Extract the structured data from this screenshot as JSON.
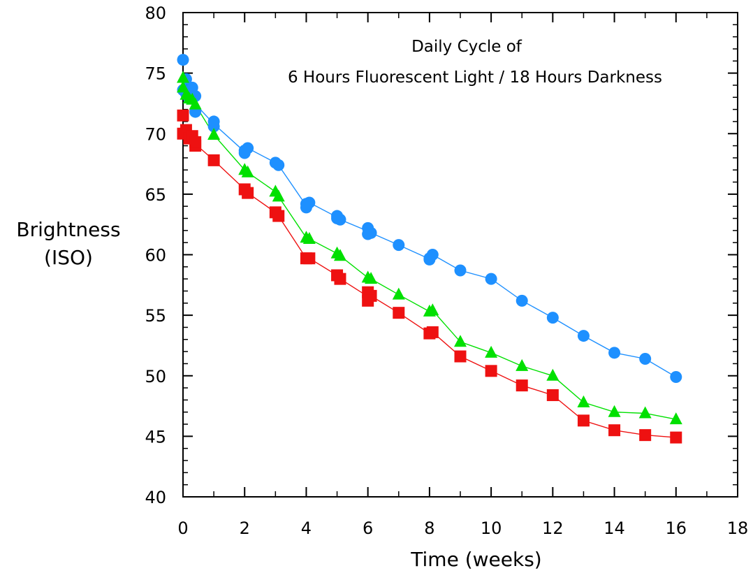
{
  "chart_data": {
    "type": "line",
    "title": "",
    "annotation": {
      "line1": "Daily Cycle of",
      "line2": "6 Hours Fluorescent Light / 18 Hours Darkness"
    },
    "xlabel": "Time (weeks)",
    "ylabel": {
      "line1": "Brightness",
      "line2": "(ISO)"
    },
    "xlim": [
      0,
      18
    ],
    "ylim": [
      40,
      80
    ],
    "xticks": [
      "0",
      "2",
      "4",
      "6",
      "8",
      "10",
      "12",
      "14",
      "16",
      "18"
    ],
    "yticks": [
      "40",
      "45",
      "50",
      "55",
      "60",
      "65",
      "70",
      "75",
      "80"
    ],
    "grid": false,
    "legend": "none",
    "series": [
      {
        "color": "#1e90ff",
        "marker": "circle",
        "x": [
          0,
          0,
          0.1,
          0.1,
          0.2,
          0.3,
          0.4,
          0.4,
          1,
          1,
          2,
          2,
          2.1,
          3,
          3.1,
          4,
          4.1,
          4,
          5,
          5.1,
          5,
          6,
          6.1,
          6,
          7,
          8,
          8.1,
          8,
          9,
          10,
          11,
          12,
          13,
          14,
          15,
          16
        ],
        "y": [
          76.1,
          73.6,
          74.5,
          73.3,
          72.9,
          73.8,
          73.1,
          71.8,
          71.0,
          70.6,
          68.6,
          68.4,
          68.8,
          67.6,
          67.4,
          64.2,
          64.3,
          63.9,
          63.2,
          62.9,
          63.0,
          62.2,
          61.8,
          61.7,
          60.8,
          59.7,
          60.0,
          59.6,
          58.7,
          58.0,
          56.2,
          54.8,
          53.3,
          51.9,
          51.4,
          49.9
        ]
      },
      {
        "color": "#00e000",
        "marker": "triangle",
        "x": [
          0,
          0,
          0.1,
          0.2,
          0.3,
          0.4,
          1,
          2,
          2.1,
          3,
          3.1,
          4,
          4.1,
          5,
          5.1,
          6,
          6.1,
          7,
          8,
          8.1,
          9,
          10,
          11,
          12,
          13,
          14,
          15,
          16
        ],
        "y": [
          74.6,
          73.8,
          73.2,
          72.9,
          72.8,
          72.4,
          69.9,
          67.0,
          66.8,
          65.2,
          64.8,
          61.4,
          61.3,
          60.1,
          59.9,
          58.1,
          58.0,
          56.7,
          55.3,
          55.4,
          52.8,
          51.9,
          50.8,
          50.0,
          47.8,
          47.0,
          46.9,
          46.4
        ]
      },
      {
        "color": "#ee1111",
        "marker": "square",
        "x": [
          0,
          0,
          0.1,
          0.2,
          0.3,
          0.4,
          0.4,
          1,
          2,
          2.1,
          3,
          3.1,
          4,
          4.1,
          5,
          5.1,
          6,
          6.1,
          6,
          7,
          8,
          8.1,
          9,
          10,
          11,
          12,
          13,
          14,
          15,
          16
        ],
        "y": [
          71.5,
          70.0,
          70.3,
          69.6,
          69.8,
          69.0,
          69.3,
          67.8,
          65.4,
          65.1,
          63.5,
          63.2,
          59.7,
          59.7,
          58.3,
          58.0,
          56.9,
          56.6,
          56.2,
          55.2,
          53.5,
          53.6,
          51.6,
          50.4,
          49.2,
          48.4,
          46.3,
          45.5,
          45.1,
          44.9
        ]
      }
    ]
  }
}
